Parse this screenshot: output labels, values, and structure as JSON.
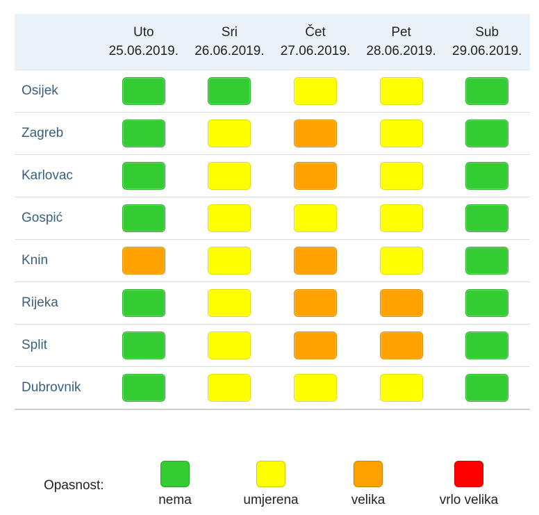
{
  "colors": {
    "nema": "#33cc33",
    "umjerena": "#ffff00",
    "velika": "#ffa200",
    "vrlo_velika": "#ff0000"
  },
  "days": [
    {
      "day": "Uto",
      "date": "25.06.2019."
    },
    {
      "day": "Sri",
      "date": "26.06.2019."
    },
    {
      "day": "Čet",
      "date": "27.06.2019."
    },
    {
      "day": "Pet",
      "date": "28.06.2019."
    },
    {
      "day": "Sub",
      "date": "29.06.2019."
    }
  ],
  "rows": [
    {
      "city": "Osijek",
      "levels": [
        "nema",
        "nema",
        "umjerena",
        "umjerena",
        "nema"
      ]
    },
    {
      "city": "Zagreb",
      "levels": [
        "nema",
        "umjerena",
        "velika",
        "umjerena",
        "nema"
      ]
    },
    {
      "city": "Karlovac",
      "levels": [
        "nema",
        "umjerena",
        "velika",
        "umjerena",
        "nema"
      ]
    },
    {
      "city": "Gospić",
      "levels": [
        "nema",
        "umjerena",
        "umjerena",
        "umjerena",
        "nema"
      ]
    },
    {
      "city": "Knin",
      "levels": [
        "velika",
        "umjerena",
        "velika",
        "umjerena",
        "nema"
      ]
    },
    {
      "city": "Rijeka",
      "levels": [
        "nema",
        "umjerena",
        "velika",
        "velika",
        "nema"
      ]
    },
    {
      "city": "Split",
      "levels": [
        "nema",
        "umjerena",
        "velika",
        "velika",
        "nema"
      ]
    },
    {
      "city": "Dubrovnik",
      "levels": [
        "nema",
        "umjerena",
        "umjerena",
        "umjerena",
        "nema"
      ]
    }
  ],
  "legend": {
    "title": "Opasnost:",
    "items": [
      {
        "key": "nema",
        "label": "nema"
      },
      {
        "key": "umjerena",
        "label": "umjerena"
      },
      {
        "key": "velika",
        "label": "velika"
      },
      {
        "key": "vrlo_velika",
        "label": "vrlo velika"
      }
    ]
  }
}
